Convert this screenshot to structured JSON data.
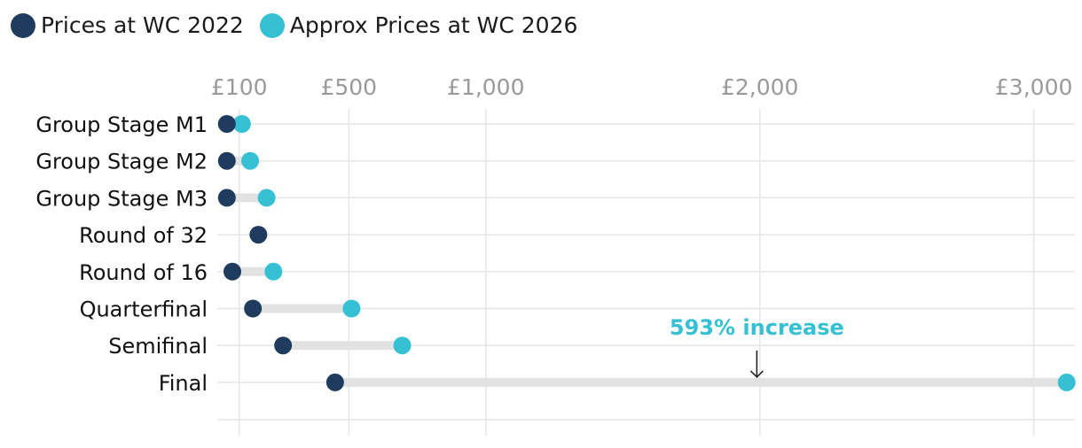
{
  "legend": {
    "series_2022": "Prices at WC 2022",
    "series_2026": "Approx Prices at WC 2026"
  },
  "colors": {
    "dark": "#1f3b5e",
    "light": "#35c0d4",
    "connector": "#e2e2e2",
    "grid": "#e6e6e6"
  },
  "chart_data": {
    "type": "dumbbell",
    "title": "",
    "xlabel": "",
    "ylabel": "",
    "xlim": [
      20,
      3150
    ],
    "ticks": [
      {
        "value": 100,
        "label": "£100"
      },
      {
        "value": 500,
        "label": "£500"
      },
      {
        "value": 1000,
        "label": "£1,000"
      },
      {
        "value": 2000,
        "label": "£2,000"
      },
      {
        "value": 3000,
        "label": "£3,000"
      }
    ],
    "categories": [
      "Group Stage M1",
      "Group Stage M2",
      "Group Stage M3",
      "Round of 32",
      "Round of 16",
      "Quarterfinal",
      "Semifinal",
      "Final"
    ],
    "series": [
      {
        "name": "Prices at WC 2022",
        "values": [
          55,
          55,
          55,
          170,
          75,
          150,
          260,
          450
        ]
      },
      {
        "name": "Approx Prices at WC 2026",
        "values": [
          110,
          140,
          200,
          null,
          225,
          510,
          695,
          3120
        ]
      }
    ],
    "annotation": {
      "text": "593% increase",
      "category": "Final",
      "value": 1850
    }
  }
}
